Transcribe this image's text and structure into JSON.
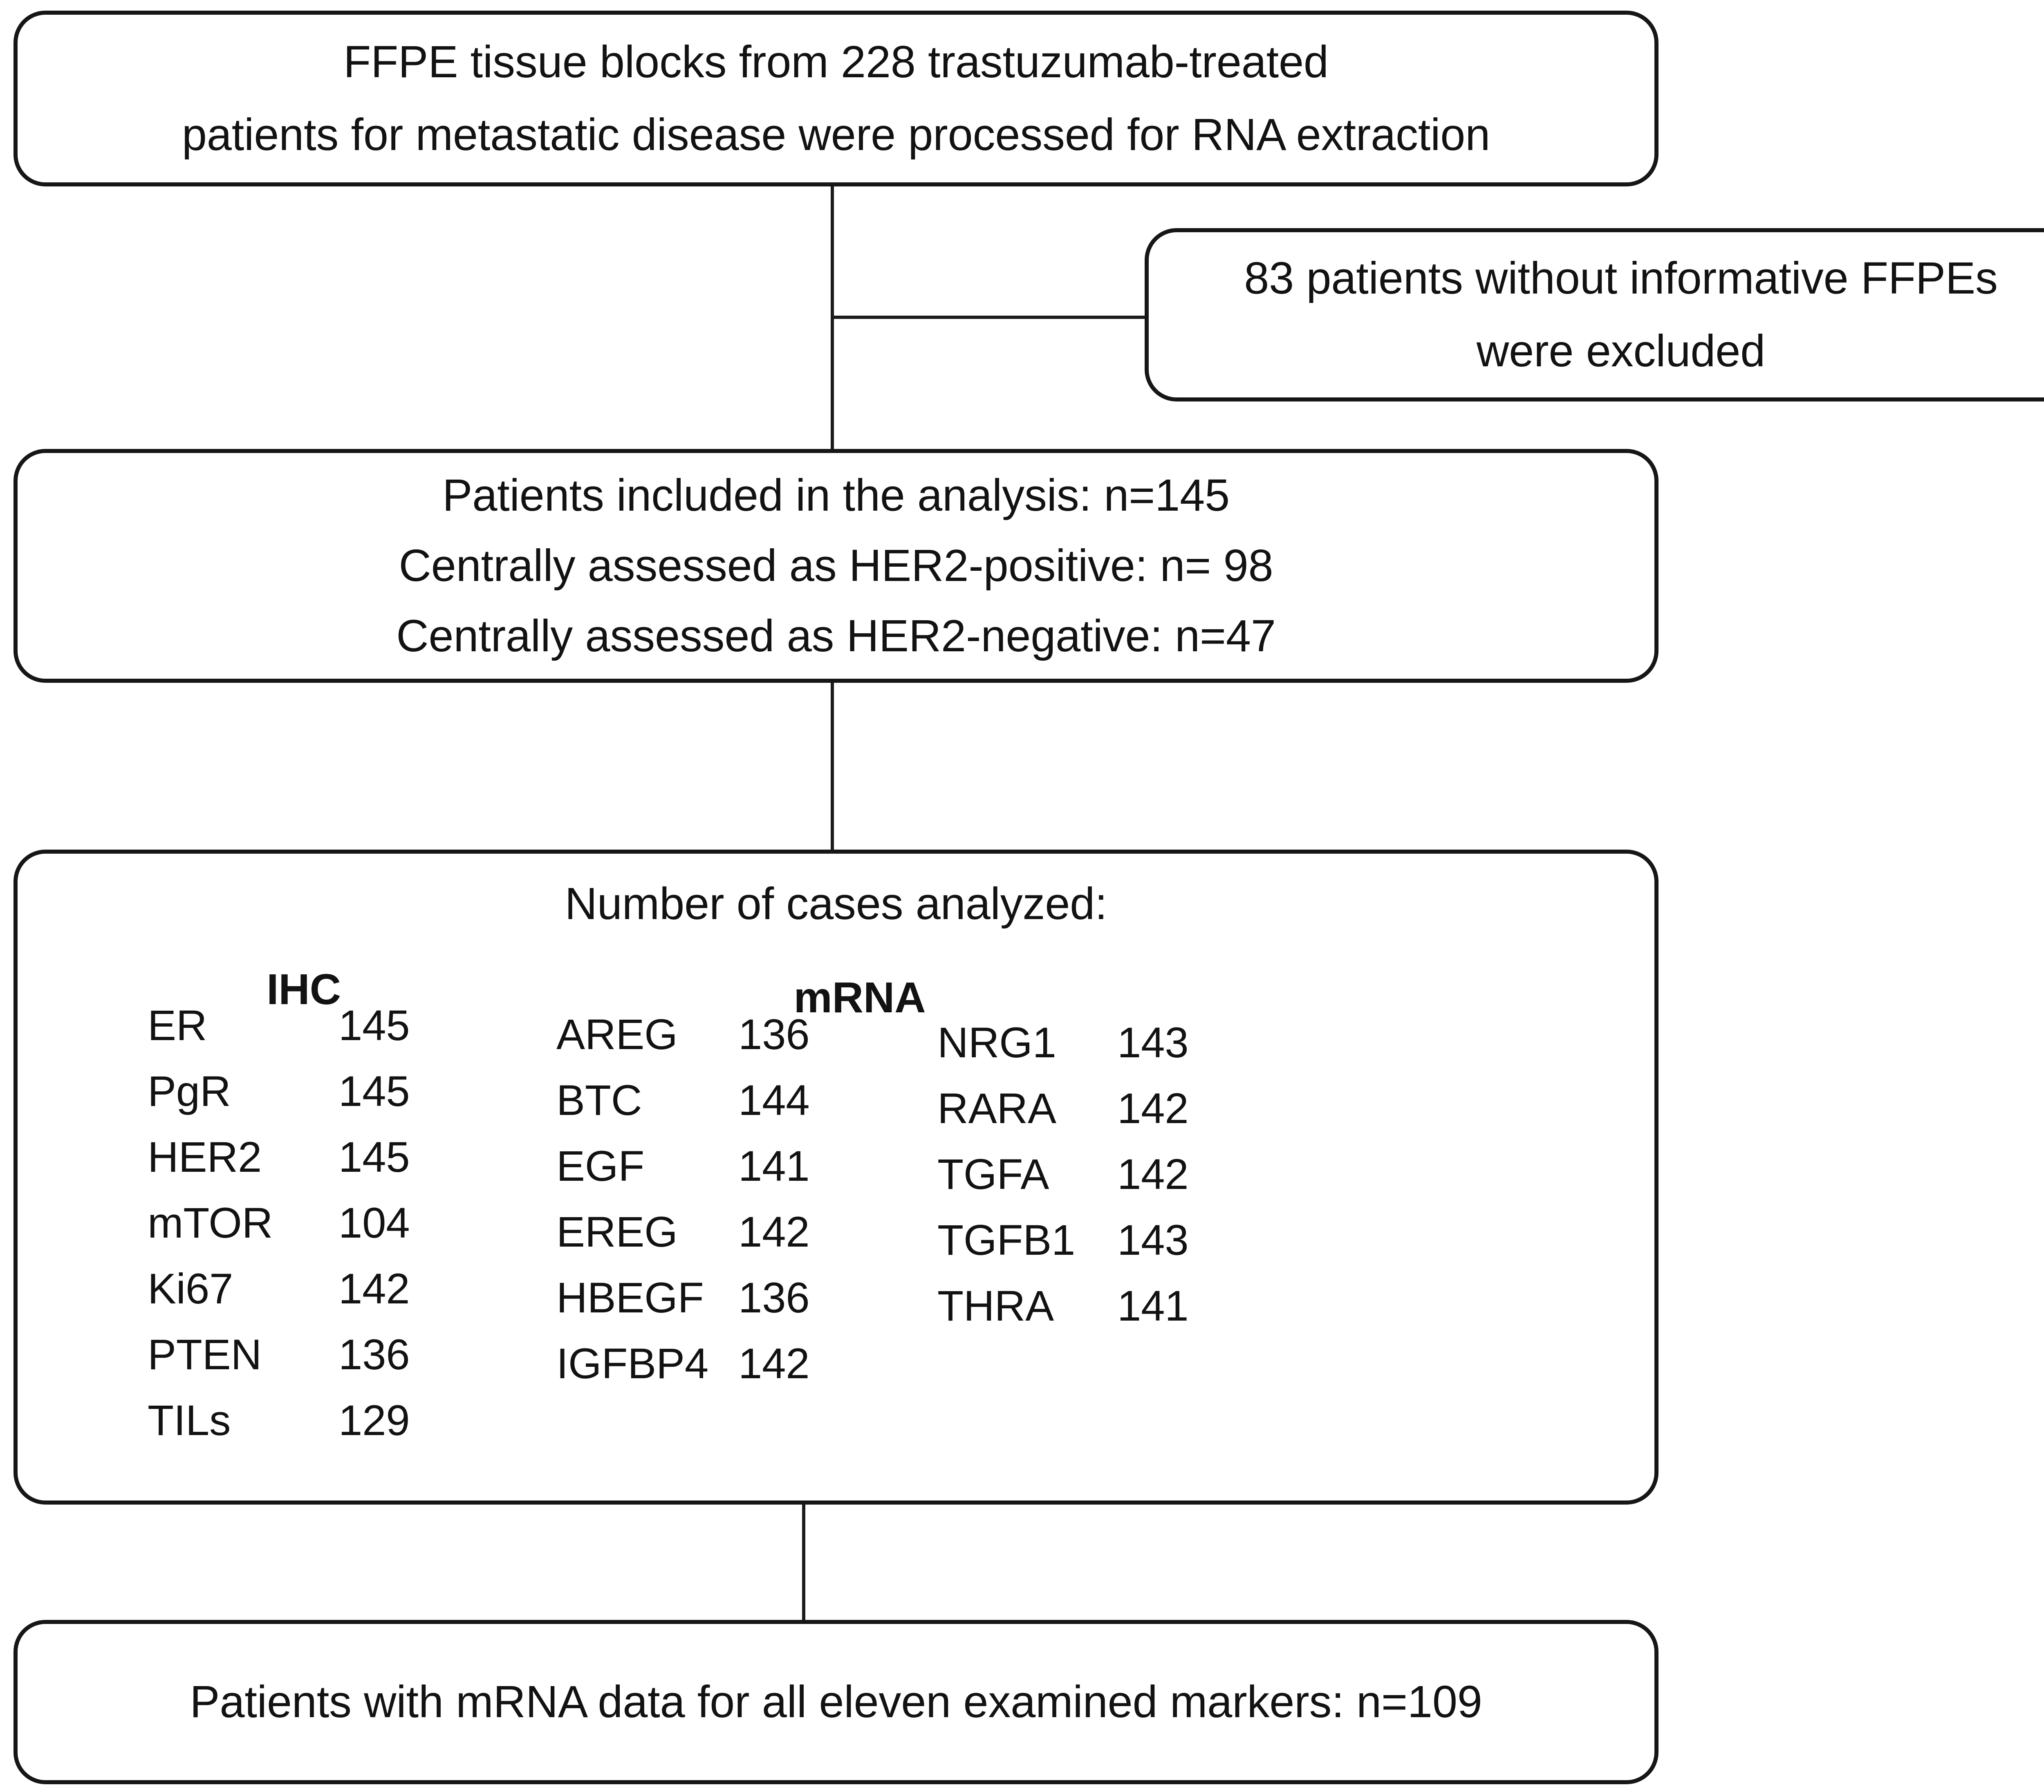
{
  "colors": {
    "ink": "#161616",
    "background": "#ffffff"
  },
  "diagram": {
    "source_box": {
      "lines": [
        "FFPE tissue blocks from 228 trastuzumab-treated",
        "patients for metastatic disease were processed for RNA extraction"
      ]
    },
    "excluded_box": {
      "lines": [
        "83 patients without informative FFPEs",
        "were excluded"
      ]
    },
    "included_box": {
      "lines": [
        "Patients included in the analysis: n=145",
        "Centrally assessed as HER2-positive: n= 98",
        "Centrally assessed as HER2-negative: n=47"
      ]
    },
    "cases_box": {
      "title": "Number of cases analyzed:",
      "ihc": {
        "header": "IHC",
        "rows": [
          {
            "label": "ER",
            "value": "145"
          },
          {
            "label": "PgR",
            "value": "145"
          },
          {
            "label": "HER2",
            "value": "145"
          },
          {
            "label": "mTOR",
            "value": "104"
          },
          {
            "label": "Ki67",
            "value": "142"
          },
          {
            "label": "PTEN",
            "value": "136"
          },
          {
            "label": "TILs",
            "value": "129"
          }
        ]
      },
      "mrna": {
        "header": "mRNA",
        "col1": [
          {
            "label": "AREG",
            "value": "136"
          },
          {
            "label": "BTC",
            "value": "144"
          },
          {
            "label": "EGF",
            "value": "141"
          },
          {
            "label": "EREG",
            "value": "142"
          },
          {
            "label": "HBEGF",
            "value": "136"
          },
          {
            "label": "IGFBP4",
            "value": "142"
          }
        ],
        "col2": [
          {
            "label": "NRG1",
            "value": "143"
          },
          {
            "label": "RARA",
            "value": "142"
          },
          {
            "label": "TGFA",
            "value": "142"
          },
          {
            "label": "TGFB1",
            "value": "143"
          },
          {
            "label": "THRA",
            "value": "141"
          }
        ]
      }
    },
    "final_box": {
      "text": "Patients with mRNA data for all eleven examined markers: n=109"
    }
  }
}
